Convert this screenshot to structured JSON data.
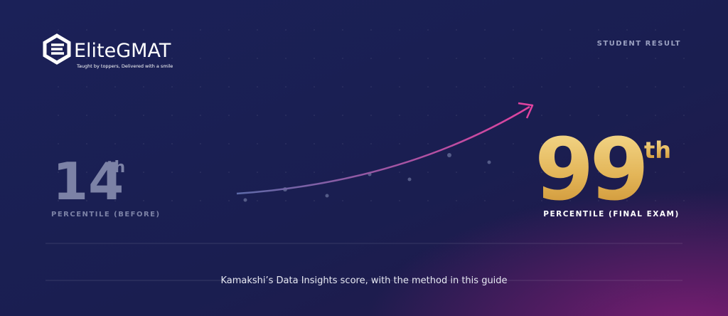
{
  "logo": {
    "name": "EliteGMAT",
    "tagline": "Taught by toppers, Delivered with a smile"
  },
  "badge": "STUDENT RESULT",
  "before": {
    "value": 14,
    "suffix": "th",
    "label": "PERCENTILE (BEFORE)"
  },
  "after": {
    "value": 99,
    "suffix": "th",
    "label": "PERCENTILE (FINAL EXAM)"
  },
  "caption": "Kamakshi’s Data Insights score, with the method in this guide"
}
